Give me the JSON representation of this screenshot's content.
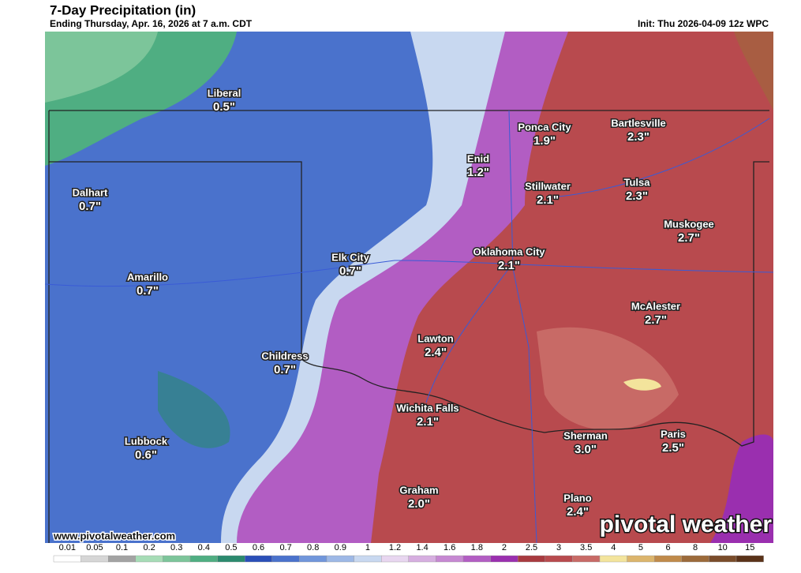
{
  "header": {
    "title": "7-Day Precipitation (in)",
    "subtitle": "Ending Thursday, Apr. 16, 2026 at 7 a.m. CDT",
    "init": "Init: Thu 2026-04-09 12z WPC"
  },
  "cities": [
    {
      "name": "Liberal",
      "amount": "0.5\""
    },
    {
      "name": "Ponca City",
      "amount": "1.9\""
    },
    {
      "name": "Bartlesville",
      "amount": "2.3\""
    },
    {
      "name": "Enid",
      "amount": "1.2\""
    },
    {
      "name": "Stillwater",
      "amount": "2.1\""
    },
    {
      "name": "Tulsa",
      "amount": "2.3\""
    },
    {
      "name": "Dalhart",
      "amount": "0.7\""
    },
    {
      "name": "Muskogee",
      "amount": "2.7\""
    },
    {
      "name": "Elk City",
      "amount": "0.7\""
    },
    {
      "name": "Oklahoma City",
      "amount": "2.1\""
    },
    {
      "name": "Amarillo",
      "amount": "0.7\""
    },
    {
      "name": "McAlester",
      "amount": "2.7\""
    },
    {
      "name": "Lawton",
      "amount": "2.4\""
    },
    {
      "name": "Childress",
      "amount": "0.7\""
    },
    {
      "name": "Wichita Falls",
      "amount": "2.1\""
    },
    {
      "name": "Sherman",
      "amount": "3.0\""
    },
    {
      "name": "Paris",
      "amount": "2.5\""
    },
    {
      "name": "Lubbock",
      "amount": "0.6\""
    },
    {
      "name": "Graham",
      "amount": "2.0\""
    },
    {
      "name": "Plano",
      "amount": "2.4\""
    }
  ],
  "legend": {
    "ticks": [
      0.01,
      0.05,
      0.1,
      0.2,
      0.3,
      0.4,
      0.5,
      0.6,
      0.7,
      0.8,
      0.9,
      1,
      1.2,
      1.4,
      1.6,
      1.8,
      2,
      2.5,
      3,
      3.5,
      4,
      5,
      6,
      8,
      10,
      15
    ],
    "colors": [
      "#ffffff",
      "#d6d6d6",
      "#a3a3a3",
      "#a6dcb6",
      "#7cc59a",
      "#4fae82",
      "#2b8a6e",
      "#2a4fb8",
      "#4a72cc",
      "#7096db",
      "#9db8e6",
      "#c8d8f0",
      "#e8d6f0",
      "#d6aee0",
      "#c688d2",
      "#b25dc3",
      "#9a2faf",
      "#a83a3f",
      "#b84a4e",
      "#c86a66",
      "#f3e49c",
      "#dcb56c",
      "#c08a4a",
      "#9c6a3a",
      "#7a4c2a",
      "#5a3218"
    ]
  },
  "footer": {
    "site": "www.pivotalweather.com",
    "logo": "pivotal weather"
  }
}
